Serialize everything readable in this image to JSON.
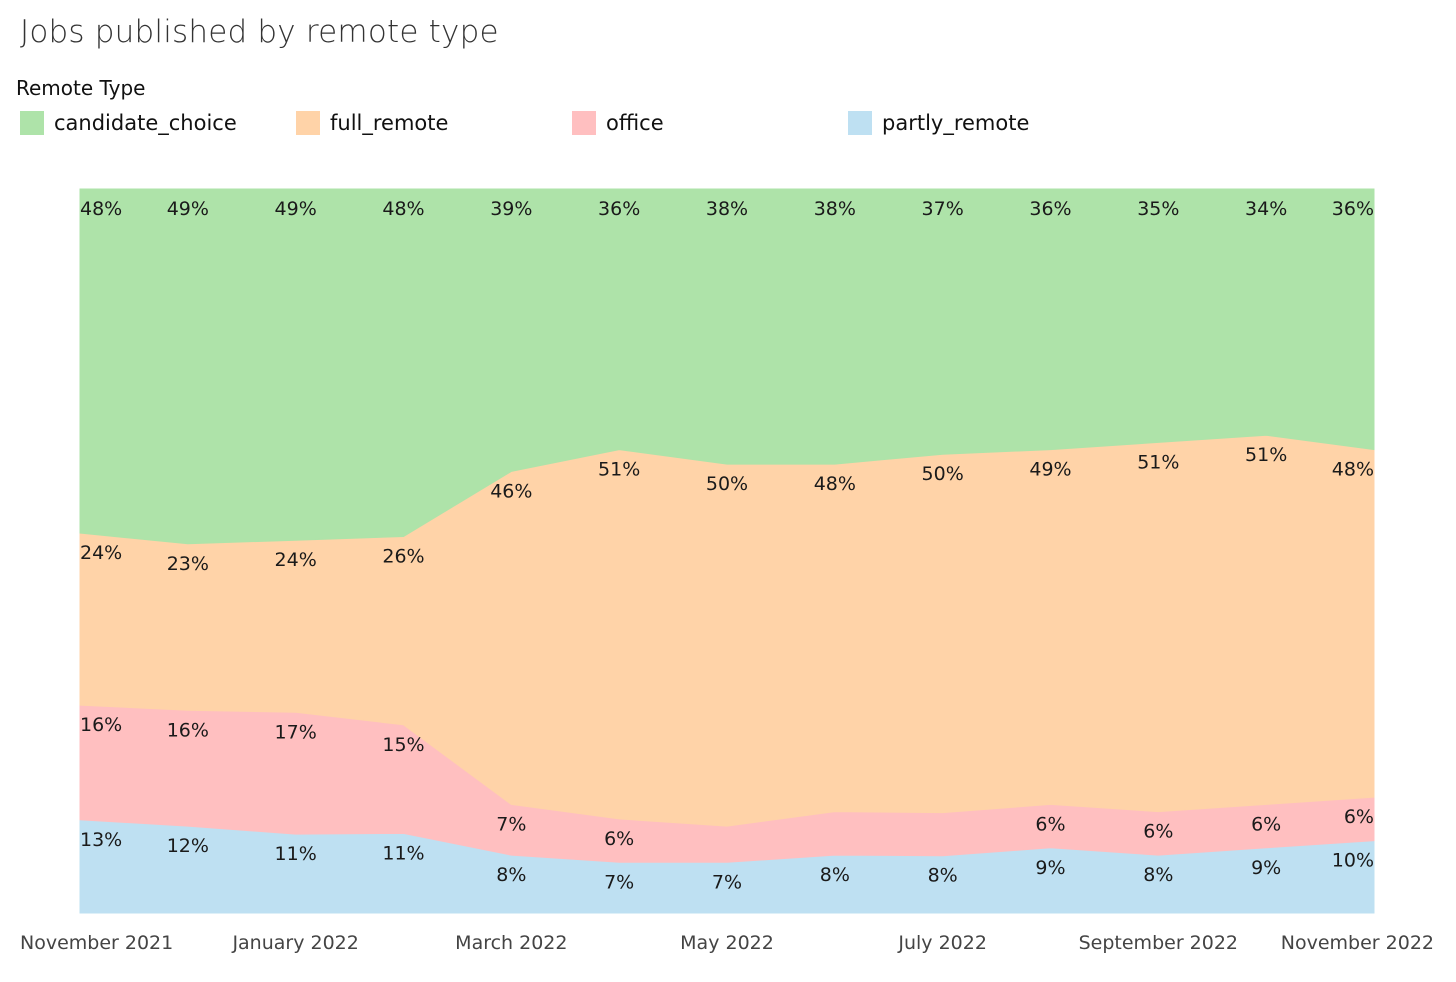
{
  "chart_data": {
    "type": "area",
    "stacked": "100%",
    "title": "Jobs published by remote type",
    "legend_title": "Remote Type",
    "legend_placement": "top-left",
    "grid": false,
    "x": [
      "2021-11",
      "2021-12",
      "2022-01",
      "2022-02",
      "2022-03",
      "2022-04",
      "2022-05",
      "2022-06",
      "2022-07",
      "2022-08",
      "2022-09",
      "2022-10",
      "2022-11"
    ],
    "x_tick_labels": [
      "November 2021",
      "January 2022",
      "March 2022",
      "May 2022",
      "July 2022",
      "September 2022",
      "November 2022"
    ],
    "series": [
      {
        "name": "partly_remote",
        "color": "#BEE0F2",
        "values": [
          13,
          12,
          11,
          11,
          8,
          7,
          7,
          8,
          8,
          9,
          8,
          9,
          10
        ],
        "labels": [
          "13%",
          "12%",
          "11%",
          "11%",
          "8%",
          "7%",
          "7%",
          "8%",
          "8%",
          "9%",
          "8%",
          "9%",
          "10%"
        ]
      },
      {
        "name": "office",
        "color": "#FFBFC0",
        "values": [
          16,
          16,
          17,
          15,
          7,
          6,
          5,
          6,
          6,
          6,
          6,
          6,
          6
        ],
        "labels": [
          "16%",
          "16%",
          "17%",
          "15%",
          "7%",
          "6%",
          "",
          "",
          "",
          "6%",
          "6%",
          "6%",
          "6%"
        ]
      },
      {
        "name": "full_remote",
        "color": "#FFD3A8",
        "values": [
          24,
          23,
          24,
          26,
          46,
          51,
          50,
          48,
          50,
          49,
          51,
          51,
          48
        ],
        "labels": [
          "24%",
          "23%",
          "24%",
          "26%",
          "46%",
          "51%",
          "50%",
          "48%",
          "50%",
          "49%",
          "51%",
          "51%",
          "48%"
        ]
      },
      {
        "name": "candidate_choice",
        "color": "#AEE3A9",
        "values": [
          48,
          49,
          49,
          48,
          39,
          36,
          38,
          38,
          37,
          36,
          35,
          34,
          36
        ],
        "labels": [
          "48%",
          "49%",
          "49%",
          "48%",
          "39%",
          "36%",
          "38%",
          "38%",
          "37%",
          "36%",
          "35%",
          "34%",
          "36%"
        ]
      }
    ],
    "legend_order": [
      "candidate_choice",
      "full_remote",
      "office",
      "partly_remote"
    ],
    "ylim": [
      0,
      100
    ]
  }
}
